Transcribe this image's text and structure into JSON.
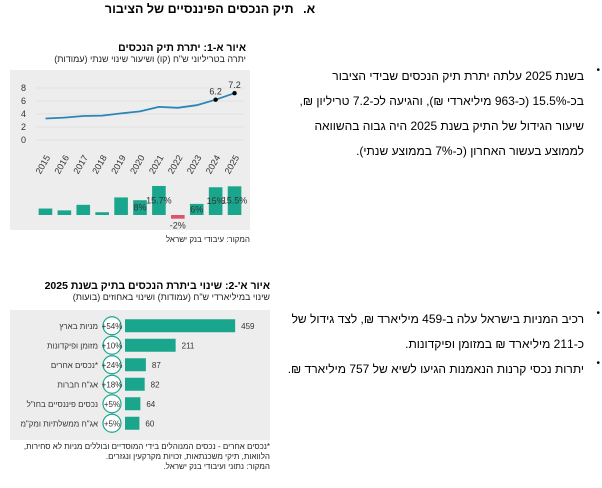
{
  "section_title": "א. תיק הנכסים הפיננסיים של הציבור",
  "section_letter": "א.",
  "section_heading": "תיק הנכסים הפיננסיים של הציבור",
  "bullets_top": [
    "בשנת 2025 עלתה יתרת תיק הנכסים שבידי הציבור בכ-15.5% (כ-963 מיליארדי ₪), והגיעה לכ-7.2 טריליון ₪, שיעור הגידול של התיק בשנת 2025 היה גבוה בהשוואה לממוצע בעשור האחרון (כ-7% בממוצע שנתי)."
  ],
  "bullets_bottom": [
    "רכיב המניות בישראל עלה ב-459 מיליארד ₪, לצד גידול של כ-211 מיליארד ₪ במזומן ופיקדונות.",
    "יתרות נכסי קרנות הנאמנות הגיעו לשיא של 757 מיליארד ₪."
  ],
  "figure1": {
    "caption_bold": "איור א-1:",
    "caption_rest": " יתרת תיק הנכסים",
    "subtitle": "יתרה בטריליוני ש\"ח (קו) ושיעור שינוי שנתי (עמודות)",
    "source": "המקור: עיבודי בנק ישראל"
  },
  "figure2": {
    "caption_bold": "איור א'-2:",
    "caption_rest": " שינוי ביתרת הנכסים בתיק בשנת 2025",
    "subtitle": "שינוי במיליארדי ש\"ח (עמודות) ושינוי באחוזים (בועות)",
    "footnote": "*נכסים אחרים - נכסים המנוהלים בידי המוסדיים ובוללים מניות לא סחירות, הלוואות, תיקי משכנתאות, זכויות מקרקעין ונגזרים.",
    "source": "המקור: נתוני ועיבודי בנק ישראל."
  },
  "colors": {
    "teal": "#1aa58d",
    "line": "#2a86b5",
    "red": "#e0536a",
    "panel": "#ededed"
  },
  "chart_data": [
    {
      "type": "line+bar",
      "title": "איור א-1: יתרת תיק הנכסים",
      "x": [
        "2015",
        "2016",
        "2017",
        "2018",
        "2019",
        "2020",
        "2021",
        "2022",
        "2023",
        "2024",
        "2025"
      ],
      "line_series": {
        "name": "יתרה בטריליוני ש\"ח",
        "values": [
          3.3,
          3.45,
          3.7,
          3.75,
          4.1,
          4.4,
          5.1,
          4.95,
          5.35,
          6.2,
          7.2
        ],
        "labeled": {
          "2024": "6.2",
          "2025": "7.2"
        }
      },
      "bar_series": {
        "name": "שיעור שינוי שנתי (%)",
        "values": [
          3.5,
          2.5,
          5.5,
          1.5,
          9.5,
          8.0,
          15.7,
          -2.0,
          6.0,
          15.0,
          15.5
        ],
        "labels": [
          "",
          "",
          "",
          "",
          "",
          "8%",
          "15.7%",
          "-2%",
          "6%",
          "15%",
          "15.5%"
        ]
      },
      "yticks": [
        "0",
        "2",
        "4",
        "6",
        "8"
      ],
      "ylim": [
        0,
        8
      ]
    },
    {
      "type": "bar",
      "orientation": "horizontal",
      "title": "איור א'-2: שינוי ביתרת הנכסים בתיק בשנת 2025",
      "categories": [
        "מניות בארץ",
        "מזומן ופיקדונות",
        "נכסים אחרים*",
        "אג\"ח חברות",
        "נכסים פיננסיים בחו\"ל",
        "אג\"ח ממשלתיות ומק\"מ"
      ],
      "values": [
        459,
        211,
        87,
        82,
        64,
        60
      ],
      "value_labels": [
        "459",
        "211",
        "87",
        "82",
        "64",
        "60"
      ],
      "pct_bubbles": [
        "+54%",
        "+10%",
        "+24%",
        "+18%",
        "+5%",
        "+5%"
      ],
      "xlim": [
        0,
        500
      ]
    }
  ]
}
